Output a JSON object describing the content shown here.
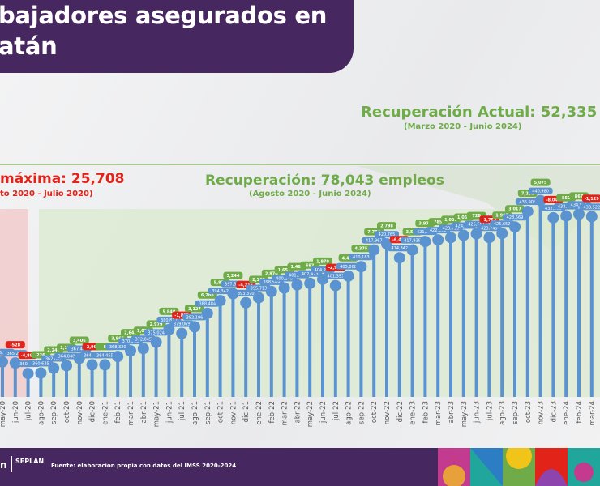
{
  "header": {
    "title_line1": "bajadores asegurados en",
    "title_line2": "atán"
  },
  "annotations": {
    "loss_title": "máxima: 25,708",
    "loss_period": "to 2020 - Julio 2020)",
    "recovery_title": "Recuperación: 78,043 empleos",
    "recovery_period": "(Agosto 2020 - Junio 2024)",
    "current_title": "Recuperación Actual: 52,335",
    "current_period": "(Marzo 2020 - Junio 2024)"
  },
  "footer": {
    "logo_text": "SEPLAN",
    "source": "Fuente: elaboración propia con datos del IMSS 2020-2024"
  },
  "colors": {
    "marker": "#5b93d0",
    "positive": "#6fab48",
    "negative": "#e2231a",
    "brand": "#47275f",
    "loss_zone": "#f3c9c9",
    "recovery_zone": "#dbe9cf"
  },
  "chart_data": {
    "type": "lollipop",
    "title": "",
    "xlabel": "",
    "ylabel": "",
    "ylim": [
      349500,
      451400
    ],
    "grid": false,
    "categories": [
      "may-20",
      "jun-20",
      "jul-20",
      "ago-20",
      "sep-20",
      "oct-20",
      "nov-20",
      "dic-20",
      "ene-21",
      "feb-21",
      "mar-21",
      "abr-21",
      "may-21",
      "jun-21",
      "jul-21",
      "ago-21",
      "sep-21",
      "oct-21",
      "nov-21",
      "dic-21",
      "ene-22",
      "feb-22",
      "mar-22",
      "abr-22",
      "may-22",
      "jun-22",
      "jul-22",
      "ago-22",
      "sep-22",
      "oct-22",
      "nov-22",
      "dic-22",
      "ene-23",
      "feb-23",
      "mar-23",
      "abr-23",
      "may-23",
      "jun-23",
      "jul-23",
      "ago-23",
      "sep-23",
      "oct-23",
      "nov-23",
      "dic-23",
      "ene-24",
      "feb-24",
      "mar-24"
    ],
    "values": [
      365817,
      365289,
      360409,
      360635,
      362882,
      364040,
      367446,
      364447,
      364455,
      368320,
      370963,
      372045,
      375024,
      380872,
      379069,
      382196,
      388484,
      394342,
      397586,
      393370,
      395713,
      398589,
      400240,
      401726,
      402423,
      404293,
      401351,
      405808,
      410183,
      417967,
      420765,
      414342,
      417938,
      421908,
      422693,
      423713,
      424773,
      425501,
      423749,
      425652,
      428669,
      435905,
      440980,
      432932,
      433784,
      434651,
      433522
    ],
    "changes": [
      null,
      -528,
      -4880,
      226,
      2247,
      1158,
      3406,
      -2999,
      8,
      3865,
      2643,
      1082,
      2979,
      5848,
      -1803,
      3127,
      6288,
      5858,
      3244,
      -4216,
      2343,
      2876,
      1651,
      1486,
      697,
      1870,
      -2942,
      4457,
      4375,
      7784,
      2798,
      -6423,
      3596,
      3970,
      785,
      1020,
      1060,
      728,
      -1752,
      1903,
      3017,
      7236,
      5075,
      -8048,
      852,
      867,
      -1129
    ]
  }
}
